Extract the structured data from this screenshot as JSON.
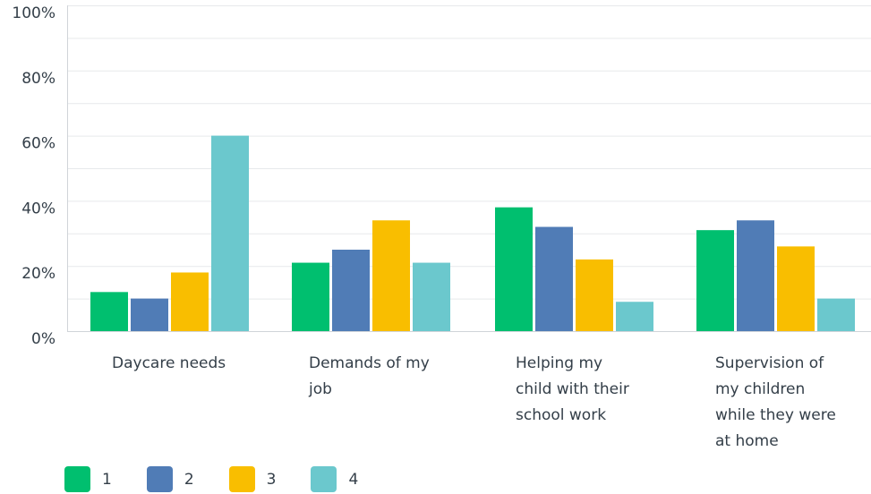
{
  "chart_data": {
    "type": "bar",
    "title": "",
    "xlabel": "",
    "ylabel": "",
    "ylim": [
      0,
      100
    ],
    "yticks": [
      "0%",
      "20%",
      "40%",
      "60%",
      "80%",
      "100%"
    ],
    "ytick_values": [
      0,
      20,
      40,
      60,
      80,
      100
    ],
    "categories": [
      "Daycare needs",
      "Demands of my job",
      "Helping my child with their school work",
      "Supervision of my children while they were at home"
    ],
    "category_label_lines": [
      "Daycare needs",
      "Demands of my\njob",
      "Helping my\nchild with their\nschool work",
      "Supervision of\nmy children\nwhile they were\nat home"
    ],
    "series": [
      {
        "name": "1",
        "color": "#00bf6f",
        "values": [
          12,
          21,
          38,
          31
        ]
      },
      {
        "name": "2",
        "color": "#507cb6",
        "values": [
          10,
          25,
          32,
          34
        ]
      },
      {
        "name": "3",
        "color": "#f9be00",
        "values": [
          18,
          34,
          22,
          26
        ]
      },
      {
        "name": "4",
        "color": "#6bc8cd",
        "values": [
          60,
          21,
          9,
          10
        ]
      }
    ],
    "grid": true,
    "legend": "bottom-left"
  }
}
